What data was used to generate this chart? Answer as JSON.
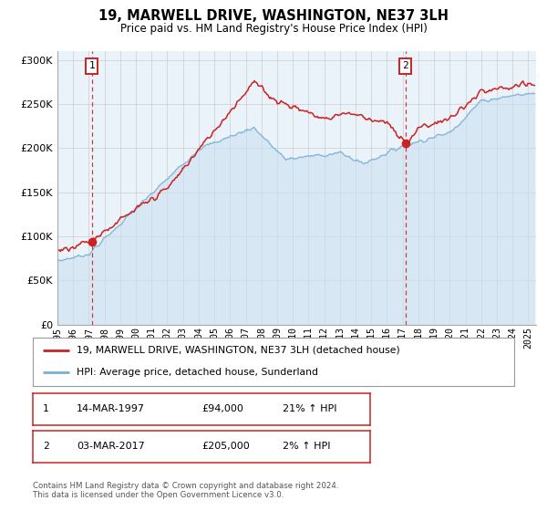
{
  "title": "19, MARWELL DRIVE, WASHINGTON, NE37 3LH",
  "subtitle": "Price paid vs. HM Land Registry's House Price Index (HPI)",
  "legend_line1": "19, MARWELL DRIVE, WASHINGTON, NE37 3LH (detached house)",
  "legend_line2": "HPI: Average price, detached house, Sunderland",
  "marker1_date_label": "14-MAR-1997",
  "marker1_price_label": "£94,000",
  "marker1_hpi_label": "21% ↑ HPI",
  "marker1_year": 1997.2,
  "marker1_price": 94000,
  "marker2_date_label": "03-MAR-2017",
  "marker2_price_label": "£205,000",
  "marker2_hpi_label": "2% ↑ HPI",
  "marker2_year": 2017.17,
  "marker2_price": 205000,
  "red_color": "#cc2222",
  "blue_color": "#7ab0d4",
  "blue_fill_color": "#cce0f0",
  "background_color": "#ffffff",
  "grid_color": "#cccccc",
  "box_color": "#cc2222",
  "footer_text": "Contains HM Land Registry data © Crown copyright and database right 2024.\nThis data is licensed under the Open Government Licence v3.0.",
  "ylim": [
    0,
    310000
  ],
  "xlim_start": 1995.0,
  "xlim_end": 2025.5
}
